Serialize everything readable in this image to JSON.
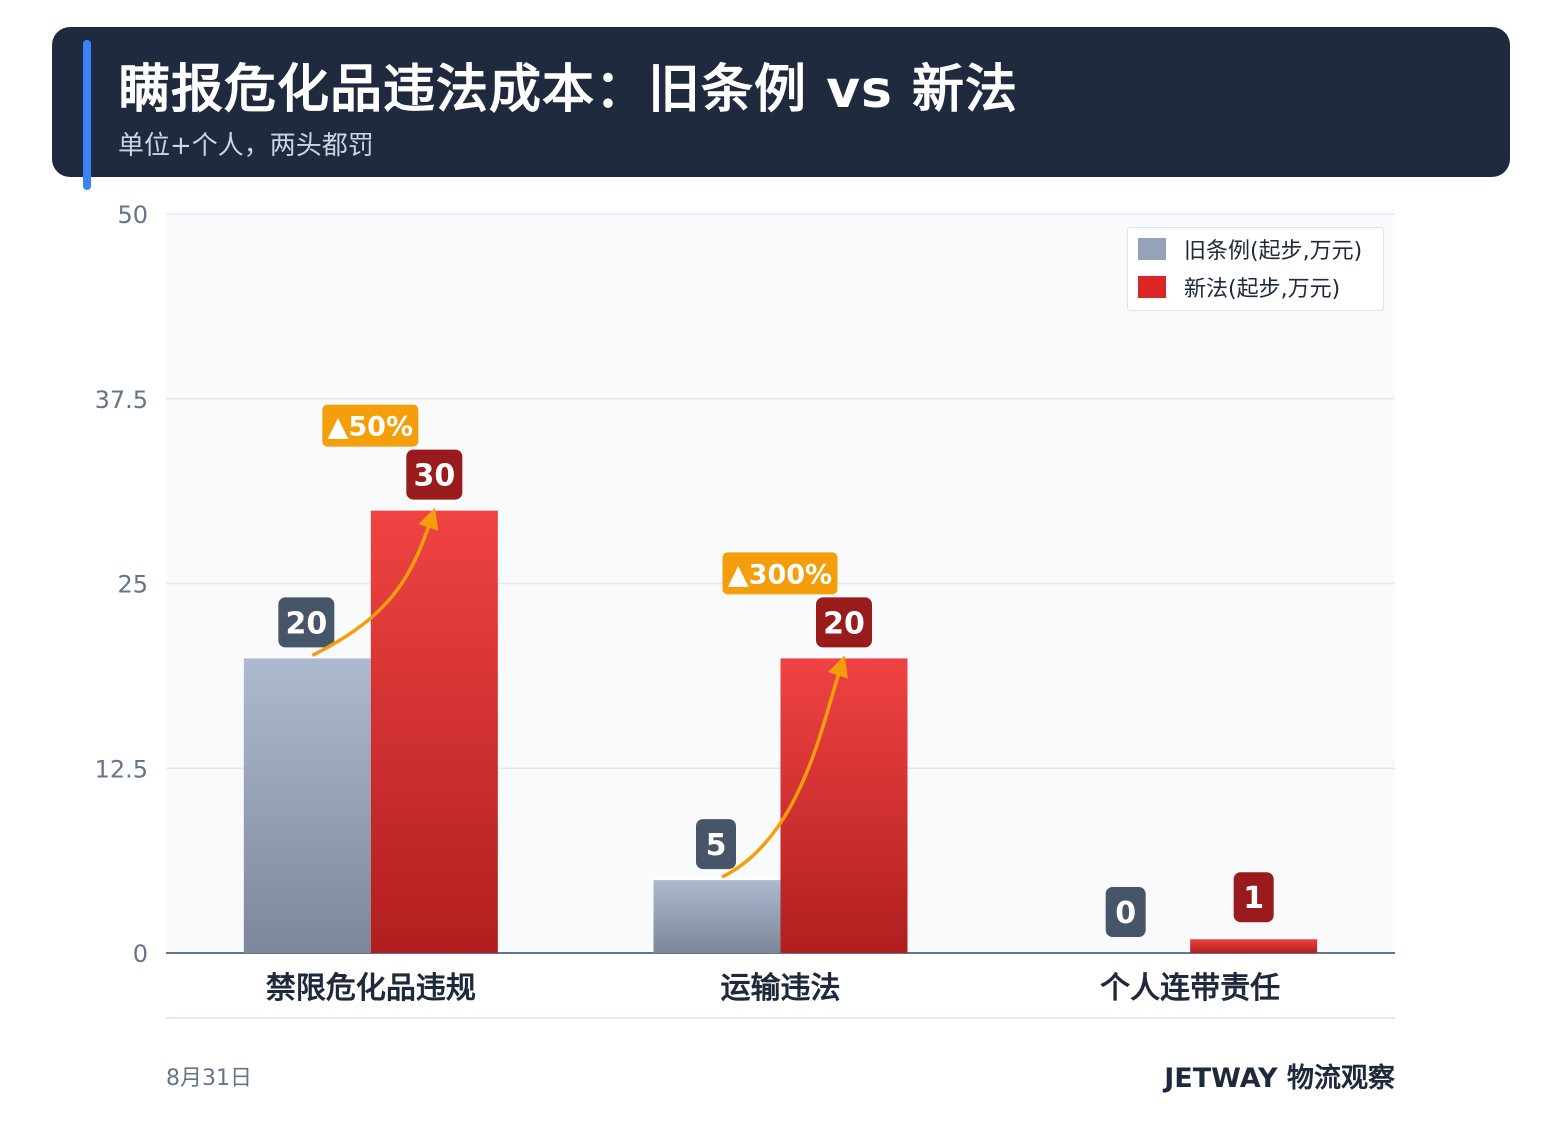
{
  "header": {
    "title": "瞒报危化品违法成本：旧条例 vs 新法",
    "subtitle": "单位+个人，两头都罚"
  },
  "colors": {
    "header_bg": "#1f2a3e",
    "accent": "#3b82f6",
    "old_series": "#94a3b8",
    "new_series": "#dc2626",
    "old_label_bg": "#475569",
    "new_label_bg": "#991b1b",
    "increase_badge": "#f59e0b"
  },
  "chart_data": {
    "type": "bar",
    "categories": [
      "禁限危化品违规",
      "运输违法",
      "个人连带责任"
    ],
    "series": [
      {
        "name": "旧条例(起步,万元)",
        "values": [
          20,
          5,
          0
        ],
        "color": "#94a3b8"
      },
      {
        "name": "新法(起步,万元)",
        "values": [
          30,
          20,
          1
        ],
        "color": "#dc2626"
      }
    ],
    "ylim": [
      0,
      50
    ],
    "yticks": [
      "0",
      "12.5",
      "25",
      "37.5",
      "50"
    ],
    "ytick_values": [
      0,
      12.5,
      25,
      37.5,
      50
    ],
    "annotations": [
      {
        "category_index": 0,
        "label": "▲50%"
      },
      {
        "category_index": 1,
        "label": "▲300%"
      }
    ],
    "legend_position": "top-right",
    "grid": true,
    "xlabel": "",
    "ylabel": ""
  },
  "footer": {
    "date": "8月31日",
    "brand": "JETWAY 物流观察"
  }
}
